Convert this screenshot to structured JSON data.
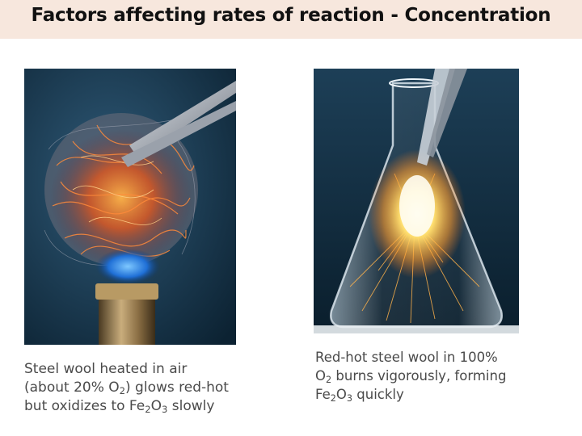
{
  "slide": {
    "title": "Factors affecting rates of reaction - Concentration"
  },
  "left_caption": {
    "line1": "Steel wool heated in air",
    "line2_pre": "(about 20% O",
    "line2_sub": "2",
    "line2_post": ") glows red-hot",
    "line3_pre": "but oxidizes to Fe",
    "line3_sub1": "2",
    "line3_mid": "O",
    "line3_sub2": "3",
    "line3_post": " slowly"
  },
  "right_caption": {
    "line1": "Red-hot steel wool in 100%",
    "line2_pre": "O",
    "line2_sub": "2",
    "line2_post": " burns vigorously, forming",
    "line3_pre": "Fe",
    "line3_sub1": "2",
    "line3_mid": "O",
    "line3_sub2": "3",
    "line3_post": " quickly"
  }
}
